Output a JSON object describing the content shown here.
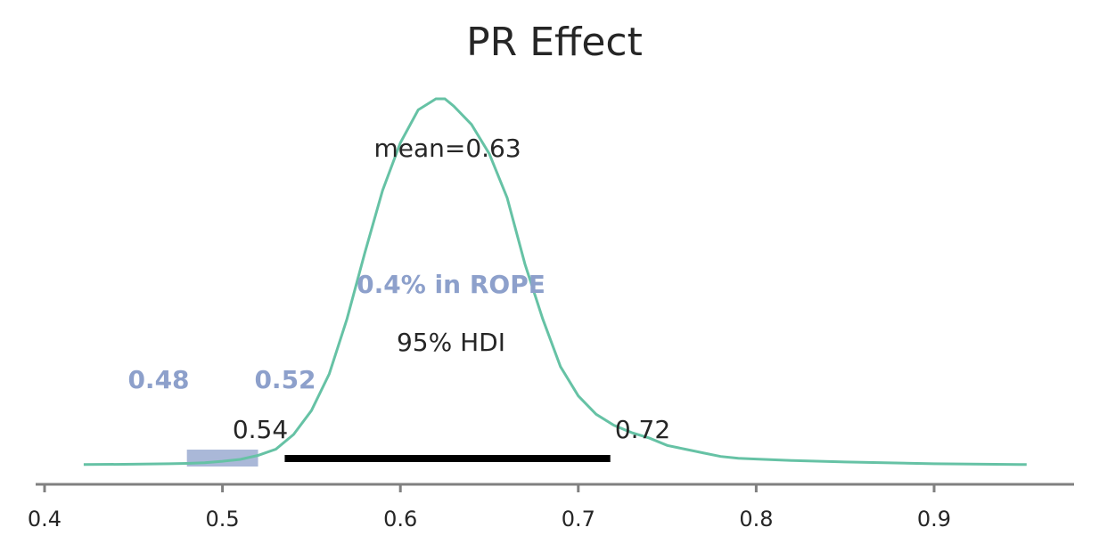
{
  "chart_data": {
    "type": "area",
    "title": "PR Effect",
    "xlabel": "",
    "ylabel": "",
    "xlim": [
      0.39,
      0.98
    ],
    "xticks": [
      0.4,
      0.5,
      0.6,
      0.7,
      0.8,
      0.9
    ],
    "xtick_labels": [
      "0.4",
      "0.5",
      "0.6",
      "0.7",
      "0.8",
      "0.9"
    ],
    "grid": false,
    "density": {
      "x": [
        0.422,
        0.45,
        0.47,
        0.48,
        0.49,
        0.5,
        0.51,
        0.52,
        0.53,
        0.54,
        0.55,
        0.56,
        0.57,
        0.58,
        0.59,
        0.6,
        0.61,
        0.62,
        0.625,
        0.63,
        0.64,
        0.65,
        0.66,
        0.67,
        0.68,
        0.69,
        0.7,
        0.71,
        0.72,
        0.73,
        0.74,
        0.75,
        0.76,
        0.77,
        0.78,
        0.79,
        0.8,
        0.82,
        0.85,
        0.9,
        0.952
      ],
      "y": [
        0.003,
        0.004,
        0.005,
        0.006,
        0.008,
        0.012,
        0.017,
        0.028,
        0.045,
        0.085,
        0.15,
        0.25,
        0.4,
        0.58,
        0.75,
        0.88,
        0.97,
        1.0,
        1.0,
        0.98,
        0.93,
        0.85,
        0.73,
        0.55,
        0.4,
        0.27,
        0.19,
        0.14,
        0.11,
        0.09,
        0.075,
        0.055,
        0.045,
        0.035,
        0.025,
        0.02,
        0.018,
        0.014,
        0.01,
        0.005,
        0.003
      ],
      "color": "#66c2a5"
    },
    "mean": 0.63,
    "mean_label": "mean=0.63",
    "hdi": {
      "prob_label": "95% HDI",
      "low": 0.54,
      "high": 0.72,
      "low_label": "0.54",
      "high_label": "0.72"
    },
    "rope": {
      "low": 0.48,
      "high": 0.52,
      "low_label": "0.48",
      "high_label": "0.52",
      "in_rope_label": "0.4% in ROPE",
      "color": "#8da0cb"
    }
  }
}
